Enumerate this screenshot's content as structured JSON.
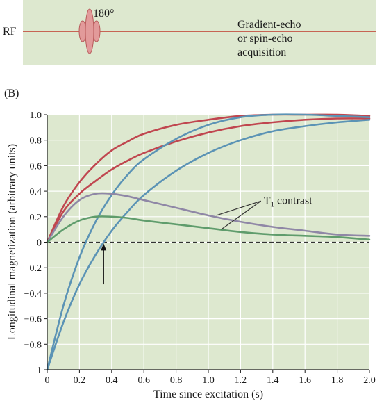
{
  "top_panel": {
    "rf_label": "RF",
    "pulse_label": "180°",
    "acq_line1": "Gradient-echo",
    "acq_line2": "or spin-echo",
    "acq_line3": "acquisition",
    "background_color": "#dde8cf",
    "line_color": "#c0392b",
    "pulse_color": "#e29a9a"
  },
  "chart_data": {
    "type": "line",
    "panel_label": "(B)",
    "xlabel": "Time since excitation (s)",
    "ylabel": "Longitudinal magnetization (arbitrary units)",
    "xlim": [
      0,
      2.0
    ],
    "ylim": [
      -1.0,
      1.0
    ],
    "x_ticks": [
      0,
      0.2,
      0.4,
      0.6,
      0.8,
      1.0,
      1.2,
      1.4,
      1.6,
      1.8,
      2.0
    ],
    "x_tick_labels": [
      "0",
      "0.2",
      "0.4",
      "0.6",
      "0.8",
      "1.0",
      "1.2",
      "1.4",
      "1.6",
      "1.8",
      "2.0"
    ],
    "y_ticks": [
      -1.0,
      -0.8,
      -0.6,
      -0.4,
      -0.2,
      0,
      0.2,
      0.4,
      0.6,
      0.8,
      1.0
    ],
    "y_tick_labels": [
      "−1",
      "−0.8",
      "−0.6",
      "−0.4",
      "−0.2",
      "0",
      "0.2",
      "0.4",
      "0.6",
      "0.8",
      "1.0"
    ],
    "grid": true,
    "background_color": "#dde8cf",
    "zero_line": "dashed",
    "annotation": {
      "text": "T",
      "subscript": "1",
      "suffix": " contrast",
      "x": 1.18,
      "y": 0.29
    },
    "arrow": {
      "x": 0.35,
      "y_from": -0.33,
      "y_to": -0.01
    },
    "series": [
      {
        "color": "#c0464f",
        "x": [
          0,
          0.1,
          0.2,
          0.3,
          0.4,
          0.5,
          0.6,
          0.8,
          1.0,
          1.2,
          1.4,
          1.6,
          1.8,
          2.0
        ],
        "values": [
          0,
          0.28,
          0.47,
          0.61,
          0.72,
          0.79,
          0.85,
          0.92,
          0.96,
          0.99,
          1.0,
          1.0,
          1.0,
          0.99
        ]
      },
      {
        "color": "#c0464f",
        "x": [
          0,
          0.1,
          0.2,
          0.3,
          0.4,
          0.5,
          0.6,
          0.8,
          1.0,
          1.2,
          1.4,
          1.6,
          1.8,
          2.0
        ],
        "values": [
          0,
          0.24,
          0.38,
          0.48,
          0.57,
          0.64,
          0.7,
          0.79,
          0.86,
          0.91,
          0.94,
          0.96,
          0.97,
          0.97
        ]
      },
      {
        "color": "#5b93b5",
        "x": [
          0,
          0.1,
          0.2,
          0.3,
          0.4,
          0.5,
          0.6,
          0.8,
          1.0,
          1.2,
          1.4,
          1.6,
          1.8,
          2.0
        ],
        "values": [
          -1,
          -0.5,
          -0.12,
          0.16,
          0.37,
          0.53,
          0.65,
          0.81,
          0.92,
          0.98,
          1.0,
          1.0,
          0.99,
          0.98
        ]
      },
      {
        "color": "#5b93b5",
        "x": [
          0,
          0.1,
          0.2,
          0.3,
          0.4,
          0.5,
          0.6,
          0.8,
          1.0,
          1.2,
          1.4,
          1.6,
          1.8,
          2.0
        ],
        "values": [
          -1,
          -0.63,
          -0.33,
          -0.1,
          0.09,
          0.24,
          0.37,
          0.56,
          0.7,
          0.8,
          0.87,
          0.91,
          0.94,
          0.96
        ]
      },
      {
        "color": "#8f87a6",
        "x": [
          0,
          0.1,
          0.2,
          0.3,
          0.4,
          0.5,
          0.6,
          0.8,
          1.0,
          1.2,
          1.4,
          1.6,
          1.8,
          2.0
        ],
        "values": [
          0,
          0.2,
          0.33,
          0.38,
          0.38,
          0.36,
          0.33,
          0.27,
          0.21,
          0.16,
          0.12,
          0.09,
          0.06,
          0.05
        ]
      },
      {
        "color": "#5f9c6c",
        "x": [
          0,
          0.1,
          0.2,
          0.3,
          0.4,
          0.5,
          0.6,
          0.8,
          1.0,
          1.2,
          1.4,
          1.6,
          1.8,
          2.0
        ],
        "values": [
          0,
          0.1,
          0.17,
          0.2,
          0.2,
          0.19,
          0.17,
          0.14,
          0.11,
          0.08,
          0.06,
          0.05,
          0.04,
          0.02
        ]
      }
    ]
  }
}
